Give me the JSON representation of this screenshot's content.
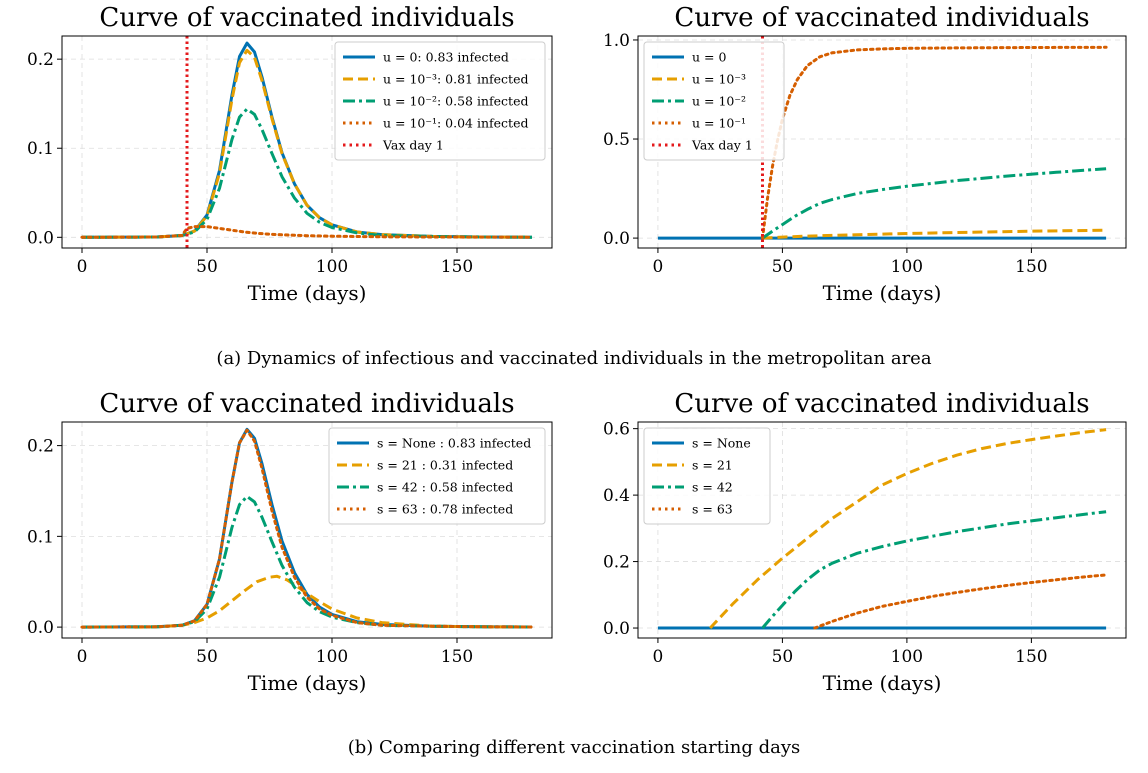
{
  "figure": {
    "caption_a": "(a) Dynamics of infectious and vaccinated individuals in the metropolitan area",
    "caption_b": "(b) Comparing different vaccination starting days"
  },
  "chart_data": [
    {
      "id": "a_left",
      "type": "line",
      "title": "Curve of vaccinated individuals",
      "xlabel": "Time (days)",
      "ylabel": "",
      "xlim": [
        -8,
        188
      ],
      "ylim": [
        -0.012,
        0.226
      ],
      "xticks": [
        0,
        50,
        100,
        150
      ],
      "yticks": [
        0.0,
        0.1,
        0.2
      ],
      "ytick_labels": [
        "0.0",
        "0.1",
        "0.2"
      ],
      "grid": true,
      "legend_position": "top-right",
      "vline": {
        "x": 42,
        "label": "Vax day 1",
        "color": "#e41a1c"
      },
      "series": [
        {
          "name": "u = 0: 0.83 infected",
          "color": "#0072b2",
          "style": "solid",
          "x": [
            0,
            30,
            40,
            45,
            50,
            55,
            60,
            63,
            66,
            69,
            72,
            76,
            80,
            85,
            90,
            95,
            100,
            110,
            120,
            140,
            160,
            180
          ],
          "y": [
            0,
            0.0003,
            0.002,
            0.007,
            0.025,
            0.075,
            0.16,
            0.203,
            0.218,
            0.208,
            0.18,
            0.135,
            0.095,
            0.06,
            0.036,
            0.022,
            0.014,
            0.006,
            0.003,
            0.001,
            0.0004,
            0.0001
          ]
        },
        {
          "name": "u = 10⁻³: 0.81 infected",
          "color": "#e69f00",
          "style": "dashed",
          "x": [
            0,
            30,
            40,
            45,
            50,
            55,
            60,
            63,
            66,
            69,
            72,
            76,
            80,
            85,
            90,
            95,
            100,
            110,
            120,
            140,
            160,
            180
          ],
          "y": [
            0,
            0.0003,
            0.002,
            0.007,
            0.024,
            0.072,
            0.155,
            0.196,
            0.21,
            0.202,
            0.176,
            0.133,
            0.094,
            0.06,
            0.036,
            0.022,
            0.014,
            0.006,
            0.003,
            0.001,
            0.0004,
            0.0001
          ]
        },
        {
          "name": "u = 10⁻²: 0.58 infected",
          "color": "#009e73",
          "style": "dashdot",
          "x": [
            0,
            30,
            40,
            45,
            50,
            55,
            60,
            63,
            66,
            69,
            72,
            76,
            80,
            85,
            90,
            95,
            100,
            110,
            120,
            140,
            160,
            180
          ],
          "y": [
            0,
            0.0003,
            0.002,
            0.006,
            0.02,
            0.055,
            0.11,
            0.135,
            0.144,
            0.138,
            0.121,
            0.094,
            0.068,
            0.044,
            0.027,
            0.017,
            0.011,
            0.005,
            0.002,
            0.001,
            0.0003,
            0.0001
          ]
        },
        {
          "name": "u = 10⁻¹: 0.04 infected",
          "color": "#d55e00",
          "style": "dotted",
          "x": [
            0,
            30,
            40,
            42,
            45,
            50,
            55,
            60,
            65,
            70,
            75,
            80,
            90,
            100,
            120,
            140,
            160,
            180
          ],
          "y": [
            0,
            0.0003,
            0.002,
            0.01,
            0.012,
            0.012,
            0.01,
            0.008,
            0.006,
            0.0045,
            0.0035,
            0.0028,
            0.0018,
            0.0012,
            0.0006,
            0.0003,
            0.0002,
            0.0001
          ]
        }
      ]
    },
    {
      "id": "a_right",
      "type": "line",
      "title": "Curve of vaccinated individuals",
      "xlabel": "Time (days)",
      "ylabel": "",
      "xlim": [
        -8,
        188
      ],
      "ylim": [
        -0.05,
        1.02
      ],
      "xticks": [
        0,
        50,
        100,
        150
      ],
      "yticks": [
        0.0,
        0.5,
        1.0
      ],
      "ytick_labels": [
        "0.0",
        "0.5",
        "1.0"
      ],
      "grid": true,
      "legend_position": "top-left",
      "vline": {
        "x": 42,
        "label": "Vax day 1",
        "color": "#e41a1c"
      },
      "series": [
        {
          "name": "u = 0",
          "color": "#0072b2",
          "style": "solid",
          "x": [
            0,
            180
          ],
          "y": [
            0,
            0
          ]
        },
        {
          "name": "u = 10⁻³",
          "color": "#e69f00",
          "style": "dashed",
          "x": [
            42,
            50,
            60,
            80,
            100,
            120,
            150,
            180
          ],
          "y": [
            0,
            0.005,
            0.01,
            0.017,
            0.023,
            0.028,
            0.035,
            0.04
          ]
        },
        {
          "name": "u = 10⁻²",
          "color": "#009e73",
          "style": "dashdot",
          "x": [
            42,
            46,
            50,
            55,
            60,
            65,
            70,
            80,
            90,
            100,
            120,
            140,
            160,
            180
          ],
          "y": [
            0,
            0.035,
            0.068,
            0.11,
            0.145,
            0.175,
            0.195,
            0.225,
            0.245,
            0.262,
            0.29,
            0.313,
            0.332,
            0.35
          ]
        },
        {
          "name": "u = 10⁻¹",
          "color": "#d55e00",
          "style": "dotted",
          "x": [
            42,
            44,
            46,
            48,
            50,
            53,
            56,
            60,
            65,
            70,
            80,
            90,
            100,
            120,
            150,
            180
          ],
          "y": [
            0,
            0.2,
            0.36,
            0.49,
            0.6,
            0.72,
            0.8,
            0.87,
            0.915,
            0.935,
            0.95,
            0.955,
            0.958,
            0.96,
            0.962,
            0.963
          ]
        }
      ]
    },
    {
      "id": "b_left",
      "type": "line",
      "title": "Curve of vaccinated individuals",
      "xlabel": "Time (days)",
      "ylabel": "",
      "xlim": [
        -8,
        188
      ],
      "ylim": [
        -0.012,
        0.226
      ],
      "xticks": [
        0,
        50,
        100,
        150
      ],
      "yticks": [
        0.0,
        0.1,
        0.2
      ],
      "ytick_labels": [
        "0.0",
        "0.1",
        "0.2"
      ],
      "grid": true,
      "legend_position": "top-right",
      "series": [
        {
          "name": "s = None : 0.83 infected",
          "color": "#0072b2",
          "style": "solid",
          "x": [
            0,
            30,
            40,
            45,
            50,
            55,
            60,
            63,
            66,
            69,
            72,
            76,
            80,
            85,
            90,
            95,
            100,
            110,
            120,
            140,
            160,
            180
          ],
          "y": [
            0,
            0.0003,
            0.002,
            0.007,
            0.025,
            0.075,
            0.16,
            0.203,
            0.218,
            0.208,
            0.18,
            0.135,
            0.095,
            0.06,
            0.036,
            0.022,
            0.014,
            0.006,
            0.003,
            0.001,
            0.0004,
            0.0001
          ]
        },
        {
          "name": "s = 21 : 0.31 infected",
          "color": "#e69f00",
          "style": "dashed",
          "x": [
            21,
            30,
            40,
            45,
            50,
            55,
            60,
            65,
            70,
            75,
            78,
            82,
            86,
            90,
            95,
            100,
            110,
            120,
            140,
            160,
            180
          ],
          "y": [
            0,
            0.0003,
            0.002,
            0.005,
            0.01,
            0.018,
            0.029,
            0.04,
            0.05,
            0.055,
            0.056,
            0.052,
            0.045,
            0.037,
            0.028,
            0.02,
            0.01,
            0.005,
            0.001,
            0.0003,
            0.0001
          ]
        },
        {
          "name": "s = 42 : 0.58 infected",
          "color": "#009e73",
          "style": "dashdot",
          "x": [
            0,
            30,
            40,
            45,
            50,
            55,
            60,
            63,
            66,
            69,
            72,
            76,
            80,
            85,
            90,
            95,
            100,
            110,
            120,
            140,
            160,
            180
          ],
          "y": [
            0,
            0.0003,
            0.002,
            0.006,
            0.02,
            0.055,
            0.11,
            0.135,
            0.144,
            0.138,
            0.121,
            0.094,
            0.068,
            0.044,
            0.027,
            0.017,
            0.011,
            0.005,
            0.002,
            0.001,
            0.0003,
            0.0001
          ]
        },
        {
          "name": "s = 63 : 0.78 infected",
          "color": "#d55e00",
          "style": "dotted",
          "x": [
            0,
            30,
            40,
            45,
            50,
            55,
            60,
            63,
            66,
            69,
            72,
            76,
            80,
            85,
            90,
            95,
            100,
            110,
            120,
            140,
            160,
            180
          ],
          "y": [
            0,
            0.0003,
            0.002,
            0.007,
            0.025,
            0.075,
            0.16,
            0.203,
            0.217,
            0.205,
            0.175,
            0.128,
            0.088,
            0.055,
            0.033,
            0.02,
            0.013,
            0.005,
            0.002,
            0.001,
            0.0003,
            0.0001
          ]
        }
      ]
    },
    {
      "id": "b_right",
      "type": "line",
      "title": "Curve of vaccinated individuals",
      "xlabel": "Time (days)",
      "ylabel": "",
      "xlim": [
        -8,
        188
      ],
      "ylim": [
        -0.03,
        0.62
      ],
      "xticks": [
        0,
        50,
        100,
        150
      ],
      "yticks": [
        0.0,
        0.2,
        0.4,
        0.6
      ],
      "ytick_labels": [
        "0.0",
        "0.2",
        "0.4",
        "0.6"
      ],
      "grid": true,
      "legend_position": "top-left",
      "series": [
        {
          "name": "s = None",
          "color": "#0072b2",
          "style": "solid",
          "x": [
            0,
            180
          ],
          "y": [
            0,
            0
          ]
        },
        {
          "name": "s = 21",
          "color": "#e69f00",
          "style": "dashed",
          "x": [
            21,
            30,
            40,
            50,
            60,
            70,
            80,
            90,
            100,
            110,
            120,
            130,
            140,
            150,
            160,
            170,
            180
          ],
          "y": [
            0,
            0.072,
            0.145,
            0.21,
            0.27,
            0.33,
            0.38,
            0.43,
            0.465,
            0.495,
            0.52,
            0.54,
            0.555,
            0.567,
            0.578,
            0.588,
            0.597
          ]
        },
        {
          "name": "s = 42",
          "color": "#009e73",
          "style": "dashdot",
          "x": [
            42,
            46,
            50,
            55,
            60,
            65,
            70,
            80,
            90,
            100,
            120,
            140,
            160,
            180
          ],
          "y": [
            0,
            0.035,
            0.068,
            0.11,
            0.145,
            0.175,
            0.195,
            0.225,
            0.245,
            0.262,
            0.29,
            0.313,
            0.332,
            0.35
          ]
        },
        {
          "name": "s = 63",
          "color": "#d55e00",
          "style": "dotted",
          "x": [
            63,
            70,
            80,
            90,
            100,
            110,
            120,
            130,
            140,
            150,
            160,
            170,
            180
          ],
          "y": [
            0,
            0.02,
            0.045,
            0.065,
            0.08,
            0.095,
            0.107,
            0.118,
            0.128,
            0.137,
            0.145,
            0.153,
            0.16
          ]
        }
      ]
    }
  ]
}
